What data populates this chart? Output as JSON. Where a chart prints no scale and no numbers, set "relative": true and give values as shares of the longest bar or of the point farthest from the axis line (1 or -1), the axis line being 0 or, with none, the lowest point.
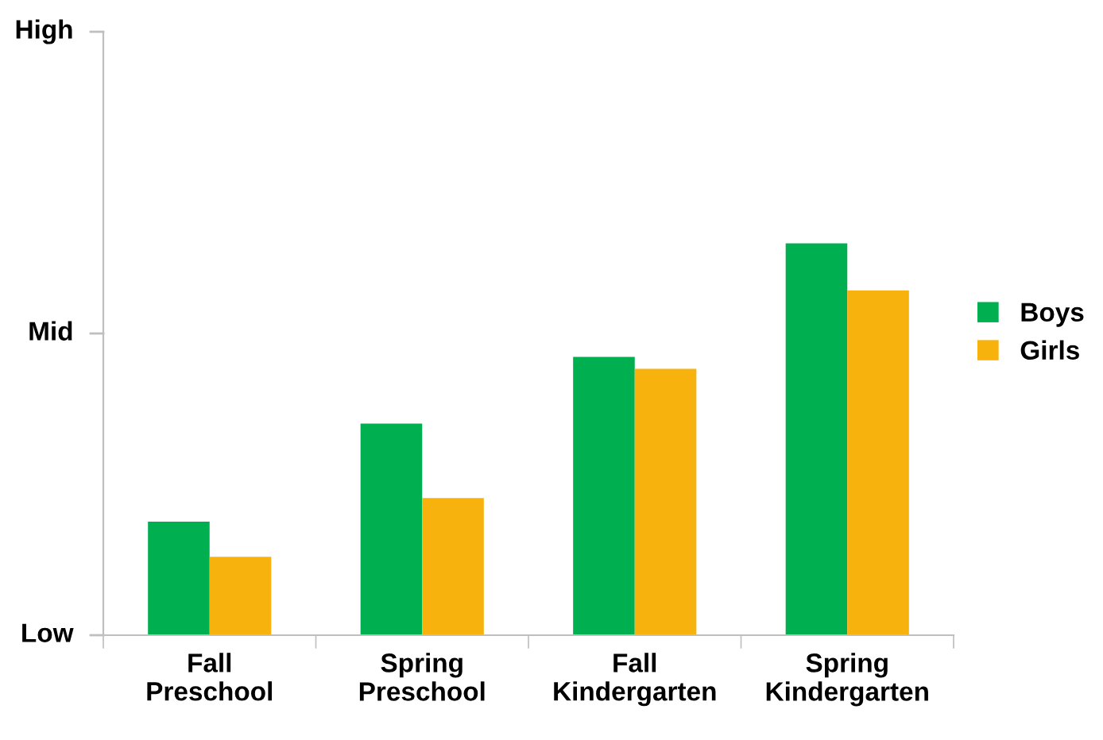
{
  "chart_data": {
    "type": "bar",
    "categories": [
      "Fall\nPreschool",
      "Spring\nPreschool",
      "Fall\nKindergarten",
      "Spring\nKindergarten"
    ],
    "series": [
      {
        "name": "Boys",
        "color": "#00b050",
        "values": [
          0.29,
          0.54,
          0.71,
          1
        ]
      },
      {
        "name": "Girls",
        "color": "#f8b20e",
        "values": [
          0.2,
          0.35,
          0.68,
          0.88
        ]
      }
    ],
    "relative": true,
    "annotations": [
      "Low",
      "Mid",
      "High"
    ],
    "grid": false,
    "legend": "right"
  }
}
